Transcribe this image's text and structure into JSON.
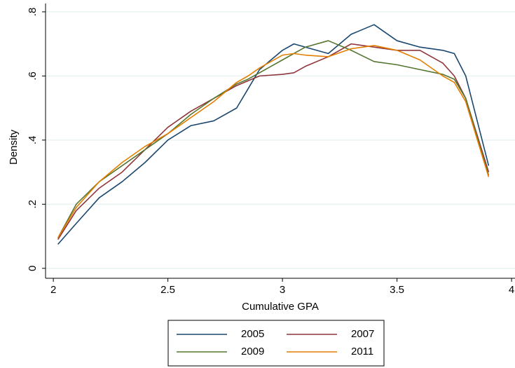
{
  "chart_data": {
    "type": "line",
    "x_label": "Cumulative GPA",
    "y_label": "Density",
    "x": [
      2.02,
      2.1,
      2.2,
      2.3,
      2.4,
      2.5,
      2.6,
      2.7,
      2.8,
      2.85,
      2.9,
      3.0,
      3.05,
      3.1,
      3.2,
      3.3,
      3.4,
      3.5,
      3.6,
      3.7,
      3.75,
      3.8,
      3.9
    ],
    "series": [
      {
        "name": "2005",
        "color": "#1a476f",
        "values": [
          0.075,
          0.14,
          0.22,
          0.27,
          0.33,
          0.4,
          0.445,
          0.46,
          0.5,
          0.56,
          0.62,
          0.68,
          0.7,
          0.69,
          0.67,
          0.73,
          0.76,
          0.71,
          0.69,
          0.68,
          0.67,
          0.6,
          0.32
        ]
      },
      {
        "name": "2007",
        "color": "#90353b",
        "values": [
          0.09,
          0.18,
          0.25,
          0.3,
          0.37,
          0.44,
          0.49,
          0.53,
          0.57,
          0.585,
          0.6,
          0.605,
          0.61,
          0.63,
          0.66,
          0.7,
          0.69,
          0.68,
          0.68,
          0.64,
          0.6,
          0.53,
          0.3
        ]
      },
      {
        "name": "2009",
        "color": "#55752f",
        "values": [
          0.095,
          0.2,
          0.27,
          0.32,
          0.37,
          0.42,
          0.48,
          0.53,
          0.575,
          0.59,
          0.61,
          0.65,
          0.67,
          0.69,
          0.71,
          0.68,
          0.645,
          0.635,
          0.62,
          0.605,
          0.59,
          0.53,
          0.29
        ]
      },
      {
        "name": "2011",
        "color": "#e37e00",
        "values": [
          0.095,
          0.19,
          0.27,
          0.33,
          0.38,
          0.42,
          0.47,
          0.52,
          0.58,
          0.6,
          0.625,
          0.665,
          0.67,
          0.665,
          0.66,
          0.685,
          0.695,
          0.68,
          0.65,
          0.6,
          0.58,
          0.52,
          0.285
        ]
      }
    ],
    "xlim": [
      1.966,
      4.015
    ],
    "ylim": [
      -0.031,
      0.826
    ],
    "xticks": [
      2,
      2.5,
      3,
      3.5,
      4
    ],
    "yticks": [
      0,
      {
        "value": 0.2,
        "label": ".2"
      },
      {
        "value": 0.4,
        "label": ".4"
      },
      {
        "value": 0.6,
        "label": ".6"
      },
      {
        "value": 0.8,
        "label": ".8"
      }
    ],
    "grid": true,
    "legend": "bottom"
  }
}
